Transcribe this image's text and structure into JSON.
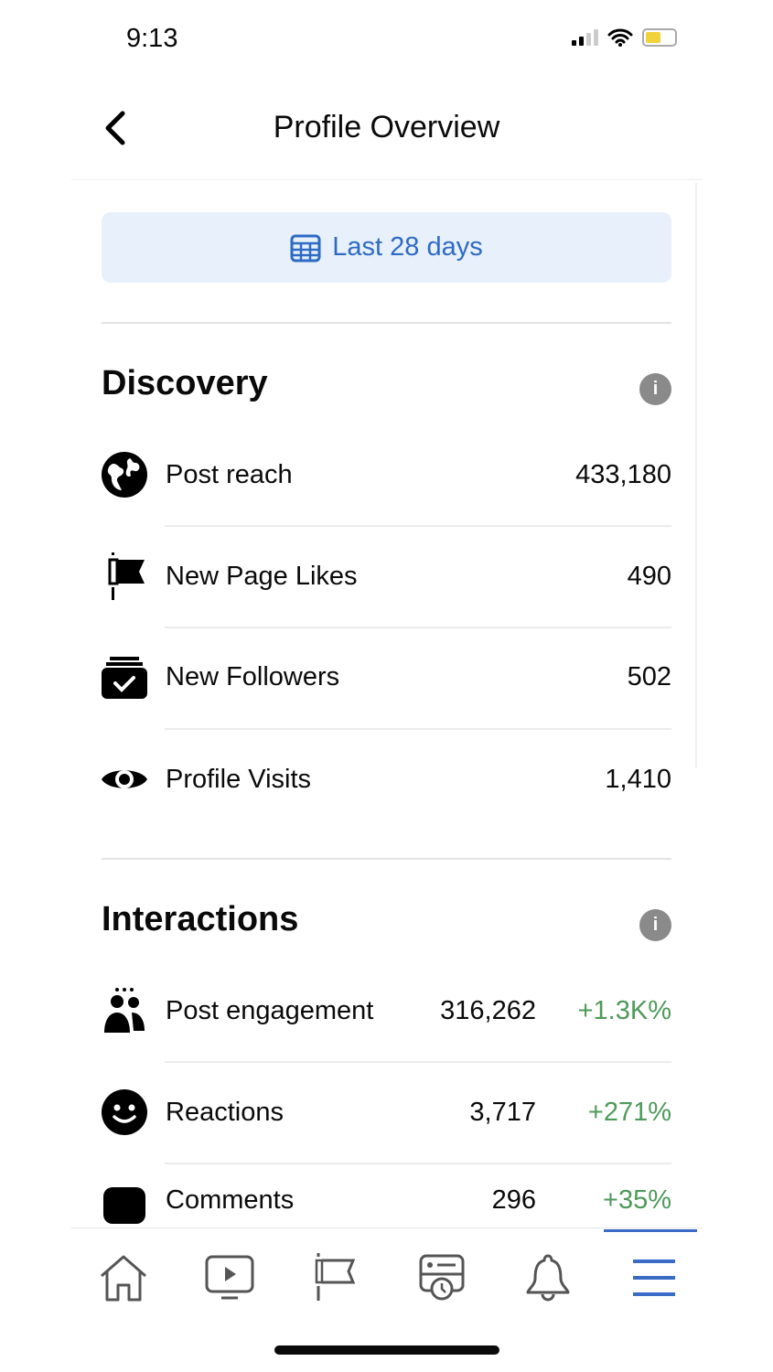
{
  "status_bar": {
    "time": "9:13"
  },
  "header": {
    "title": "Profile Overview",
    "back_icon": "chevron-left-icon"
  },
  "date_filter": {
    "label": "Last 28 days",
    "icon": "calendar-icon",
    "accent": "#2e6bc4"
  },
  "discovery": {
    "title": "Discovery",
    "items": [
      {
        "label": "Post reach",
        "value": "433,180",
        "icon": "globe-icon"
      },
      {
        "label": "New Page Likes",
        "value": "490",
        "icon": "flag-icon"
      },
      {
        "label": "New Followers",
        "value": "502",
        "icon": "inbox-check-icon"
      },
      {
        "label": "Profile Visits",
        "value": "1,410",
        "icon": "eye-icon"
      }
    ]
  },
  "interactions": {
    "title": "Interactions",
    "items": [
      {
        "label": "Post engagement",
        "value": "316,262",
        "change": "+1.3K%",
        "icon": "people-icon"
      },
      {
        "label": "Reactions",
        "value": "3,717",
        "change": "+271%",
        "icon": "smiley-icon"
      },
      {
        "label": "Comments",
        "value": "296",
        "change": "+35%",
        "icon": "comment-icon"
      }
    ],
    "change_color": "#4e9a5a"
  },
  "bottom_nav": [
    "home-icon",
    "video-icon",
    "pages-flag-icon",
    "news-icon",
    "bell-icon",
    "menu-icon"
  ]
}
